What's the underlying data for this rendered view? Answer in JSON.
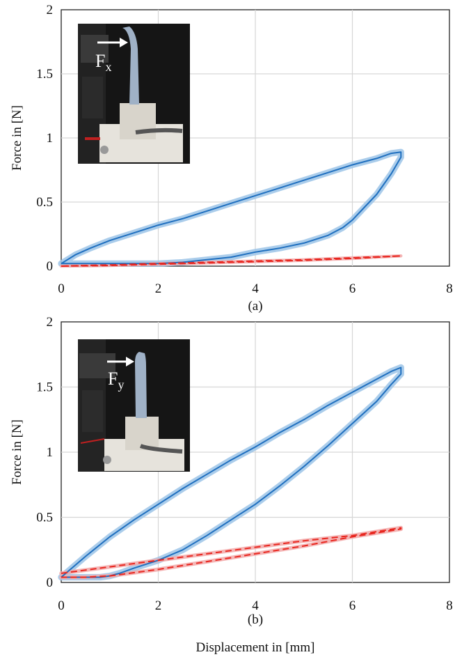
{
  "figure": {
    "xlabel": "Displacement in [mm]",
    "colors": {
      "upper": "#1f6fbf",
      "upper_band": "#9cc4e8",
      "lower": "#e8261f",
      "lower_band": "#f2a8a8"
    }
  },
  "chart_data": [
    {
      "type": "line",
      "caption": "(a)",
      "ylabel": "Force in [N]",
      "xlabel": "",
      "xlim": [
        0,
        8
      ],
      "ylim": [
        0,
        2
      ],
      "xticks": [
        "0",
        "2",
        "4",
        "6",
        "8"
      ],
      "yticks": [
        "0",
        "0.5",
        "1",
        "1.5",
        "2"
      ],
      "grid": true,
      "inset": {
        "label": "F",
        "sub": "x"
      },
      "series": [
        {
          "color": "blue",
          "style": "solid",
          "band": 0.025,
          "x": [
            0,
            0.3,
            0.6,
            1,
            1.5,
            2,
            2.5,
            3,
            3.5,
            4,
            4.5,
            5,
            5.5,
            6,
            6.5,
            6.8,
            7,
            7,
            6.8,
            6.5,
            6.2,
            6,
            5.8,
            5.5,
            5,
            4.5,
            4,
            3.5,
            3,
            2.5,
            2,
            1.5,
            1,
            0.5,
            0
          ],
          "y": [
            0.02,
            0.09,
            0.14,
            0.2,
            0.26,
            0.32,
            0.37,
            0.43,
            0.49,
            0.55,
            0.61,
            0.67,
            0.73,
            0.79,
            0.84,
            0.88,
            0.89,
            0.85,
            0.72,
            0.56,
            0.44,
            0.36,
            0.3,
            0.24,
            0.18,
            0.14,
            0.11,
            0.07,
            0.05,
            0.03,
            0.02,
            0.02,
            0.02,
            0.02,
            0.02
          ]
        },
        {
          "color": "red",
          "style": "dashed",
          "band": 0.012,
          "x": [
            0,
            1,
            2,
            3,
            4,
            5,
            6,
            7,
            7,
            6,
            5,
            4,
            3,
            2,
            1,
            0
          ],
          "y": [
            0.0,
            0.01,
            0.02,
            0.03,
            0.04,
            0.05,
            0.065,
            0.08,
            0.08,
            0.06,
            0.045,
            0.035,
            0.025,
            0.015,
            0.005,
            0.0
          ]
        }
      ]
    },
    {
      "type": "line",
      "caption": "(b)",
      "ylabel": "Force in [N]",
      "xlabel": "Displacement in [mm]",
      "xlim": [
        0,
        8
      ],
      "ylim": [
        0,
        2
      ],
      "xticks": [
        "0",
        "2",
        "4",
        "6",
        "8"
      ],
      "yticks": [
        "0",
        "0.5",
        "1",
        "1.5",
        "2"
      ],
      "grid": true,
      "inset": {
        "label": "F",
        "sub": "y"
      },
      "series": [
        {
          "color": "blue",
          "style": "solid",
          "band": 0.025,
          "x": [
            0,
            0.5,
            1,
            1.5,
            2,
            2.5,
            3,
            3.5,
            4,
            4.5,
            5,
            5.5,
            6,
            6.5,
            6.8,
            7,
            7,
            6.8,
            6.5,
            6,
            5.5,
            5,
            4.5,
            4,
            3.5,
            3,
            2.5,
            2,
            1.5,
            1.2,
            1,
            0.8,
            0.5,
            0
          ],
          "y": [
            0.04,
            0.2,
            0.35,
            0.48,
            0.6,
            0.72,
            0.83,
            0.94,
            1.04,
            1.15,
            1.25,
            1.36,
            1.46,
            1.56,
            1.62,
            1.65,
            1.6,
            1.52,
            1.39,
            1.22,
            1.05,
            0.89,
            0.74,
            0.6,
            0.48,
            0.36,
            0.25,
            0.17,
            0.11,
            0.07,
            0.05,
            0.04,
            0.04,
            0.04
          ]
        },
        {
          "color": "red",
          "style": "dashed",
          "band": 0.015,
          "x": [
            0,
            1,
            2,
            3,
            4,
            5,
            6,
            7,
            7,
            6,
            5,
            4,
            3,
            2,
            1,
            0.5,
            0
          ],
          "y": [
            0.07,
            0.12,
            0.17,
            0.22,
            0.27,
            0.32,
            0.36,
            0.42,
            0.41,
            0.35,
            0.28,
            0.22,
            0.16,
            0.1,
            0.05,
            0.04,
            0.04
          ]
        }
      ]
    }
  ]
}
